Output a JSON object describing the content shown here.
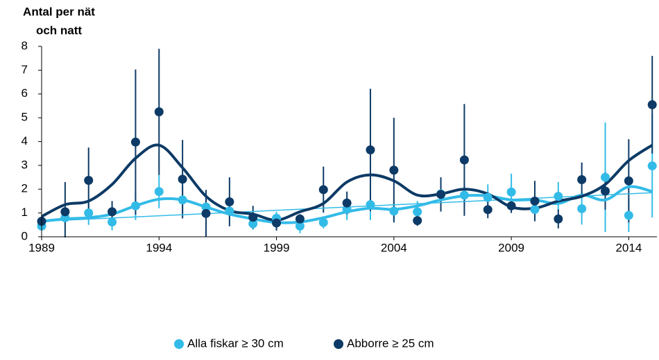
{
  "chart_data": {
    "type": "errorbar-scatter",
    "y_label": [
      "Antal per nät",
      "och natt"
    ],
    "x": [
      1989,
      1990,
      1991,
      1992,
      1993,
      1994,
      1995,
      1996,
      1997,
      1998,
      1999,
      2000,
      2001,
      2002,
      2003,
      2004,
      2005,
      2006,
      2007,
      2008,
      2009,
      2010,
      2011,
      2012,
      2013,
      2014,
      2015
    ],
    "series": [
      {
        "name": "Alla fiskar ≥ 30 cm",
        "color": "#33bbe8",
        "values": [
          0.45,
          0.8,
          1.0,
          0.62,
          1.3,
          1.9,
          1.55,
          1.25,
          1.08,
          0.55,
          0.78,
          0.45,
          0.6,
          1.15,
          1.35,
          1.08,
          1.05,
          1.8,
          1.75,
          1.65,
          1.88,
          1.15,
          1.7,
          1.18,
          2.5,
          0.9,
          2.98
        ],
        "errors": [
          0.15,
          0.2,
          0.5,
          0.35,
          0.6,
          0.7,
          0.55,
          0.5,
          0.22,
          0.25,
          0.27,
          0.3,
          0.25,
          0.45,
          0.65,
          0.37,
          0.45,
          0.4,
          0.45,
          0.55,
          0.77,
          0.25,
          0.6,
          0.67,
          2.3,
          0.7,
          2.17
        ],
        "smooth": [
          0.65,
          0.75,
          0.8,
          0.95,
          1.3,
          1.58,
          1.55,
          1.25,
          0.95,
          0.75,
          0.6,
          0.62,
          0.8,
          1.05,
          1.2,
          1.15,
          1.3,
          1.55,
          1.72,
          1.72,
          1.55,
          1.55,
          1.4,
          1.75,
          1.55,
          2.1,
          1.9
        ]
      },
      {
        "name": "Abborre ≥ 25 cm",
        "color": "#0d3a66",
        "values": [
          0.65,
          1.05,
          2.37,
          1.05,
          3.98,
          5.25,
          2.42,
          0.98,
          1.47,
          0.82,
          0.58,
          0.75,
          1.98,
          1.42,
          3.65,
          2.8,
          0.68,
          1.78,
          3.23,
          1.14,
          1.3,
          1.5,
          0.75,
          2.4,
          1.92,
          2.35,
          5.55
        ],
        "errors": [
          0.2,
          1.25,
          1.38,
          0.45,
          3.05,
          2.65,
          1.65,
          0.99,
          1.03,
          0.48,
          0.32,
          0.2,
          0.97,
          0.48,
          2.57,
          2.2,
          0.22,
          0.72,
          2.35,
          0.36,
          0.3,
          0.85,
          0.4,
          0.72,
          0.78,
          1.75,
          2.05
        ],
        "smooth": [
          0.85,
          1.35,
          1.5,
          2.2,
          3.3,
          3.85,
          2.9,
          1.7,
          1.1,
          0.95,
          0.7,
          1.05,
          1.4,
          2.3,
          2.6,
          2.35,
          1.75,
          1.8,
          2.0,
          1.8,
          1.25,
          1.2,
          1.5,
          1.7,
          2.2,
          3.2,
          3.85
        ]
      }
    ],
    "trend": {
      "color": "#33bbe8",
      "x": [
        1989,
        2015
      ],
      "values": [
        0.65,
        1.85
      ]
    },
    "xlim": [
      1989,
      2015.2
    ],
    "xticks": [
      1989,
      1994,
      1999,
      2004,
      2009,
      2014
    ],
    "ylim": [
      0,
      8
    ],
    "yticks": [
      0,
      1,
      2,
      3,
      4,
      5,
      6,
      7,
      8
    ],
    "legend": "bottom"
  }
}
